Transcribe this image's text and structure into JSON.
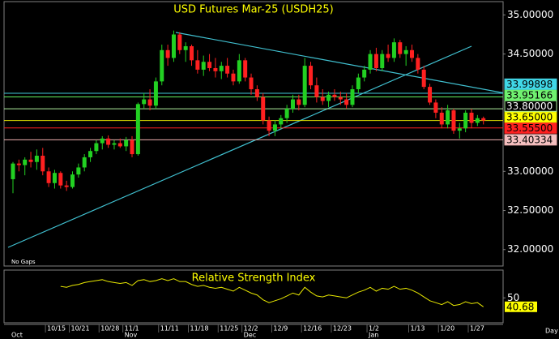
{
  "chart_data": {
    "type": "candlestick",
    "title": "USD Futures Mar-25  (USDH25)",
    "note": "No Gaps",
    "x_unit_label": "Day",
    "categories": [
      null,
      null,
      null,
      null,
      null,
      null,
      "10/15",
      null,
      null,
      null,
      "10/21",
      null,
      null,
      null,
      null,
      "10/28",
      null,
      null,
      null,
      "11/1",
      null,
      null,
      null,
      null,
      null,
      "11/11",
      null,
      null,
      null,
      null,
      "11/18",
      null,
      null,
      null,
      null,
      "11/25",
      null,
      null,
      null,
      "12/2",
      null,
      null,
      null,
      null,
      "12/9",
      null,
      null,
      null,
      null,
      "12/16",
      null,
      null,
      null,
      null,
      "12/23",
      null,
      null,
      null,
      null,
      null,
      "1/2",
      null,
      null,
      null,
      null,
      null,
      null,
      "1/13",
      null,
      null,
      null,
      null,
      "1/20",
      null,
      null,
      null,
      null,
      "1/27",
      null,
      null
    ],
    "months": [
      "Oct",
      null,
      null,
      null,
      null,
      null,
      null,
      null,
      null,
      null,
      null,
      null,
      null,
      null,
      null,
      null,
      null,
      null,
      null,
      "Nov",
      null,
      null,
      null,
      null,
      null,
      null,
      null,
      null,
      null,
      null,
      null,
      null,
      null,
      null,
      null,
      null,
      null,
      null,
      null,
      "Dec",
      null,
      null,
      null,
      null,
      null,
      null,
      null,
      null,
      null,
      null,
      null,
      null,
      null,
      null,
      null,
      null,
      null,
      null,
      null,
      null,
      "Jan",
      null,
      null,
      null,
      null,
      null,
      null,
      null,
      null,
      null,
      null,
      null,
      null,
      null,
      null,
      null,
      null,
      null,
      null,
      null
    ],
    "open": [
      32.9,
      33.1,
      33.08,
      33.15,
      33.12,
      33.2,
      33.0,
      32.85,
      32.98,
      32.82,
      32.8,
      32.96,
      33.05,
      33.18,
      33.26,
      33.36,
      33.42,
      33.34,
      33.36,
      33.32,
      33.4,
      33.22,
      33.86,
      33.92,
      33.84,
      34.15,
      34.55,
      34.45,
      34.75,
      34.55,
      34.6,
      34.42,
      34.3,
      34.4,
      34.32,
      34.28,
      34.35,
      34.25,
      34.15,
      34.42,
      34.2,
      34.05,
      33.95,
      33.65,
      33.52,
      33.6,
      33.68,
      33.8,
      33.92,
      33.85,
      34.35,
      34.1,
      33.95,
      33.9,
      33.98,
      33.95,
      33.92,
      33.85,
      34.05,
      34.2,
      34.3,
      34.5,
      34.32,
      34.5,
      34.45,
      34.65,
      34.5,
      34.55,
      34.45,
      34.3,
      34.08,
      33.88,
      33.75,
      33.6,
      33.78,
      33.52,
      33.55,
      33.75,
      33.62,
      33.68
    ],
    "high": [
      33.12,
      33.15,
      33.18,
      33.25,
      33.28,
      33.3,
      33.05,
      33.02,
      33.0,
      32.88,
      33.0,
      33.1,
      33.22,
      33.3,
      33.4,
      33.45,
      33.46,
      33.4,
      33.42,
      33.44,
      33.45,
      33.88,
      34.0,
      34.05,
      34.2,
      34.62,
      34.62,
      34.8,
      34.78,
      34.65,
      34.62,
      34.55,
      34.48,
      34.5,
      34.45,
      34.4,
      34.45,
      34.3,
      34.5,
      34.45,
      34.25,
      34.1,
      34.0,
      33.7,
      33.65,
      33.72,
      33.85,
      33.98,
      33.98,
      34.45,
      34.4,
      34.2,
      34.05,
      34.02,
      34.05,
      34.02,
      34.0,
      34.1,
      34.25,
      34.35,
      34.55,
      34.58,
      34.55,
      34.62,
      34.7,
      34.68,
      34.6,
      34.62,
      34.5,
      34.35,
      34.12,
      33.92,
      33.82,
      33.85,
      33.8,
      33.62,
      33.78,
      33.8,
      33.72,
      33.7
    ],
    "low": [
      32.72,
      33.0,
      32.95,
      33.05,
      33.02,
      32.95,
      32.8,
      32.78,
      32.78,
      32.75,
      32.78,
      32.92,
      33.0,
      33.12,
      33.22,
      33.28,
      33.3,
      33.28,
      33.3,
      33.26,
      33.18,
      33.2,
      33.8,
      33.78,
      33.8,
      34.1,
      34.35,
      34.4,
      34.5,
      34.4,
      34.35,
      34.25,
      34.22,
      34.28,
      34.2,
      34.18,
      34.2,
      34.1,
      34.12,
      34.15,
      33.98,
      33.9,
      33.6,
      33.45,
      33.45,
      33.55,
      33.62,
      33.75,
      33.78,
      33.82,
      34.05,
      33.88,
      33.85,
      33.82,
      33.9,
      33.85,
      33.8,
      33.82,
      34.0,
      34.15,
      34.25,
      34.28,
      34.28,
      34.4,
      34.4,
      34.45,
      34.35,
      34.4,
      34.25,
      34.05,
      33.85,
      33.68,
      33.55,
      33.55,
      33.48,
      33.42,
      33.5,
      33.55,
      33.58,
      33.6
    ],
    "close": [
      33.1,
      33.08,
      33.15,
      33.12,
      33.2,
      33.0,
      32.85,
      32.98,
      32.82,
      32.8,
      32.96,
      33.05,
      33.18,
      33.26,
      33.36,
      33.42,
      33.34,
      33.36,
      33.32,
      33.4,
      33.22,
      33.86,
      33.92,
      33.84,
      34.15,
      34.55,
      34.45,
      34.75,
      34.55,
      34.6,
      34.42,
      34.3,
      34.4,
      34.32,
      34.28,
      34.35,
      34.25,
      34.15,
      34.42,
      34.2,
      34.05,
      33.95,
      33.65,
      33.52,
      33.6,
      33.68,
      33.8,
      33.92,
      33.85,
      34.35,
      34.1,
      33.95,
      33.9,
      33.98,
      33.95,
      33.92,
      33.85,
      34.05,
      34.2,
      34.3,
      34.5,
      34.32,
      34.5,
      34.45,
      34.65,
      34.5,
      34.55,
      34.45,
      34.3,
      34.08,
      33.88,
      33.75,
      33.6,
      33.78,
      33.52,
      33.55,
      33.75,
      33.62,
      33.68,
      33.65
    ],
    "up_color": "#22d022",
    "down_color": "#ff2020",
    "ylim": [
      31.79,
      35.17
    ],
    "yticks": [
      {
        "value": 32,
        "label": "32.00000"
      },
      {
        "value": 32.5,
        "label": "32.50000"
      },
      {
        "value": 33,
        "label": "33.00000"
      },
      {
        "value": 34.5,
        "label": "34.50000"
      },
      {
        "value": 35,
        "label": "35.00000"
      }
    ],
    "levels": [
      {
        "value": 33.99898,
        "label": "33.99898",
        "color": "#40c8d8",
        "label_bg": "#40d8e8",
        "label_color": "#000000"
      },
      {
        "value": 33.95166,
        "label": "33.95166",
        "color": "#60f060",
        "label_bg": "#70f070",
        "label_color": "#000000"
      },
      {
        "value": 33.8,
        "label": "33.80000",
        "color": "#b0f0a0",
        "label_bg": "#000000",
        "label_color": "#ffffff"
      },
      {
        "value": 33.65,
        "label": "33.65000",
        "color": "#e0e000",
        "label_bg": "#ffff00",
        "label_color": "#000000"
      },
      {
        "value": 33.555,
        "label": "33.55500",
        "color": "#ff2020",
        "label_bg": "#ff2020",
        "label_color": "#000000"
      },
      {
        "value": 33.40334,
        "label": "33.40334",
        "color": "#f0b0b0",
        "label_bg": "#f4c0c0",
        "label_color": "#000000"
      }
    ],
    "indicator": {
      "type": "line",
      "title": "Relative Strength Index",
      "color": "#e8e800",
      "ylim": [
        24,
        79
      ],
      "yticks": [
        50
      ],
      "last_label_bg": "#ffff00",
      "values": [
        null,
        null,
        null,
        null,
        null,
        null,
        null,
        null,
        62,
        61,
        63,
        64,
        66,
        67,
        68,
        69,
        67,
        66,
        65,
        66,
        63,
        68,
        69,
        67,
        68,
        70,
        68,
        70,
        67,
        67,
        64,
        62,
        63,
        61,
        60,
        61,
        59,
        57,
        61,
        58,
        55,
        53,
        48,
        45,
        47,
        49,
        52,
        55,
        53,
        61,
        56,
        52,
        51,
        53,
        52,
        51,
        50,
        53,
        56,
        58,
        61,
        57,
        60,
        59,
        62,
        59,
        60,
        58,
        55,
        51,
        47,
        45,
        43,
        46,
        42,
        43,
        46,
        44,
        45,
        40.68
      ]
    }
  }
}
